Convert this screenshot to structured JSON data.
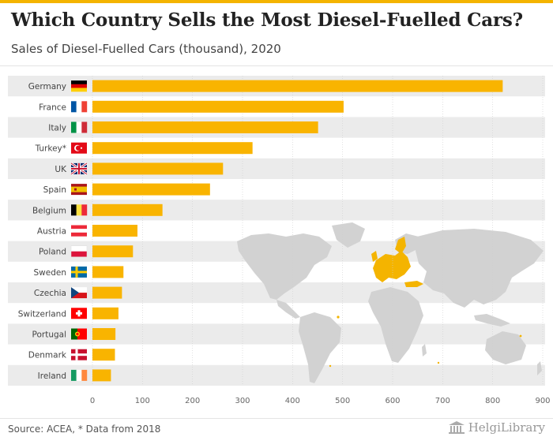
{
  "header": {
    "title": "Which Country Sells the Most Diesel-Fuelled Cars?",
    "subtitle": "Sales of Diesel-Fuelled Cars (thousand), 2020"
  },
  "footer": {
    "source": "Source: ACEA, * Data from 2018",
    "logo_text": "HelgiLibrary"
  },
  "colors": {
    "bar": "#f9b400",
    "row_band": "#ebebeb",
    "accent": "#f4b400",
    "map_land": "#d2d2d2",
    "map_highlight": "#f4b400"
  },
  "chart_data": {
    "type": "bar",
    "orientation": "horizontal",
    "title": "Which Country Sells the Most Diesel-Fuelled Cars?",
    "subtitle": "Sales of Diesel-Fuelled Cars (thousand), 2020",
    "categories": [
      "Germany",
      "France",
      "Italy",
      "Turkey*",
      "UK",
      "Spain",
      "Belgium",
      "Austria",
      "Poland",
      "Sweden",
      "Czechia",
      "Switzerland",
      "Portugal",
      "Denmark",
      "Ireland"
    ],
    "flag_icons": [
      "flag-germany-icon",
      "flag-france-icon",
      "flag-italy-icon",
      "flag-turkey-icon",
      "flag-uk-icon",
      "flag-spain-icon",
      "flag-belgium-icon",
      "flag-austria-icon",
      "flag-poland-icon",
      "flag-sweden-icon",
      "flag-czechia-icon",
      "flag-switzerland-icon",
      "flag-portugal-icon",
      "flag-denmark-icon",
      "flag-ireland-icon"
    ],
    "values": [
      820,
      502,
      451,
      320,
      261,
      235,
      140,
      90,
      81,
      62,
      59,
      52,
      46,
      45,
      37
    ],
    "xlim": [
      0,
      900
    ],
    "xticks": [
      "0",
      "100",
      "200",
      "300",
      "400",
      "500",
      "600",
      "700",
      "800",
      "900"
    ],
    "grid": true
  }
}
